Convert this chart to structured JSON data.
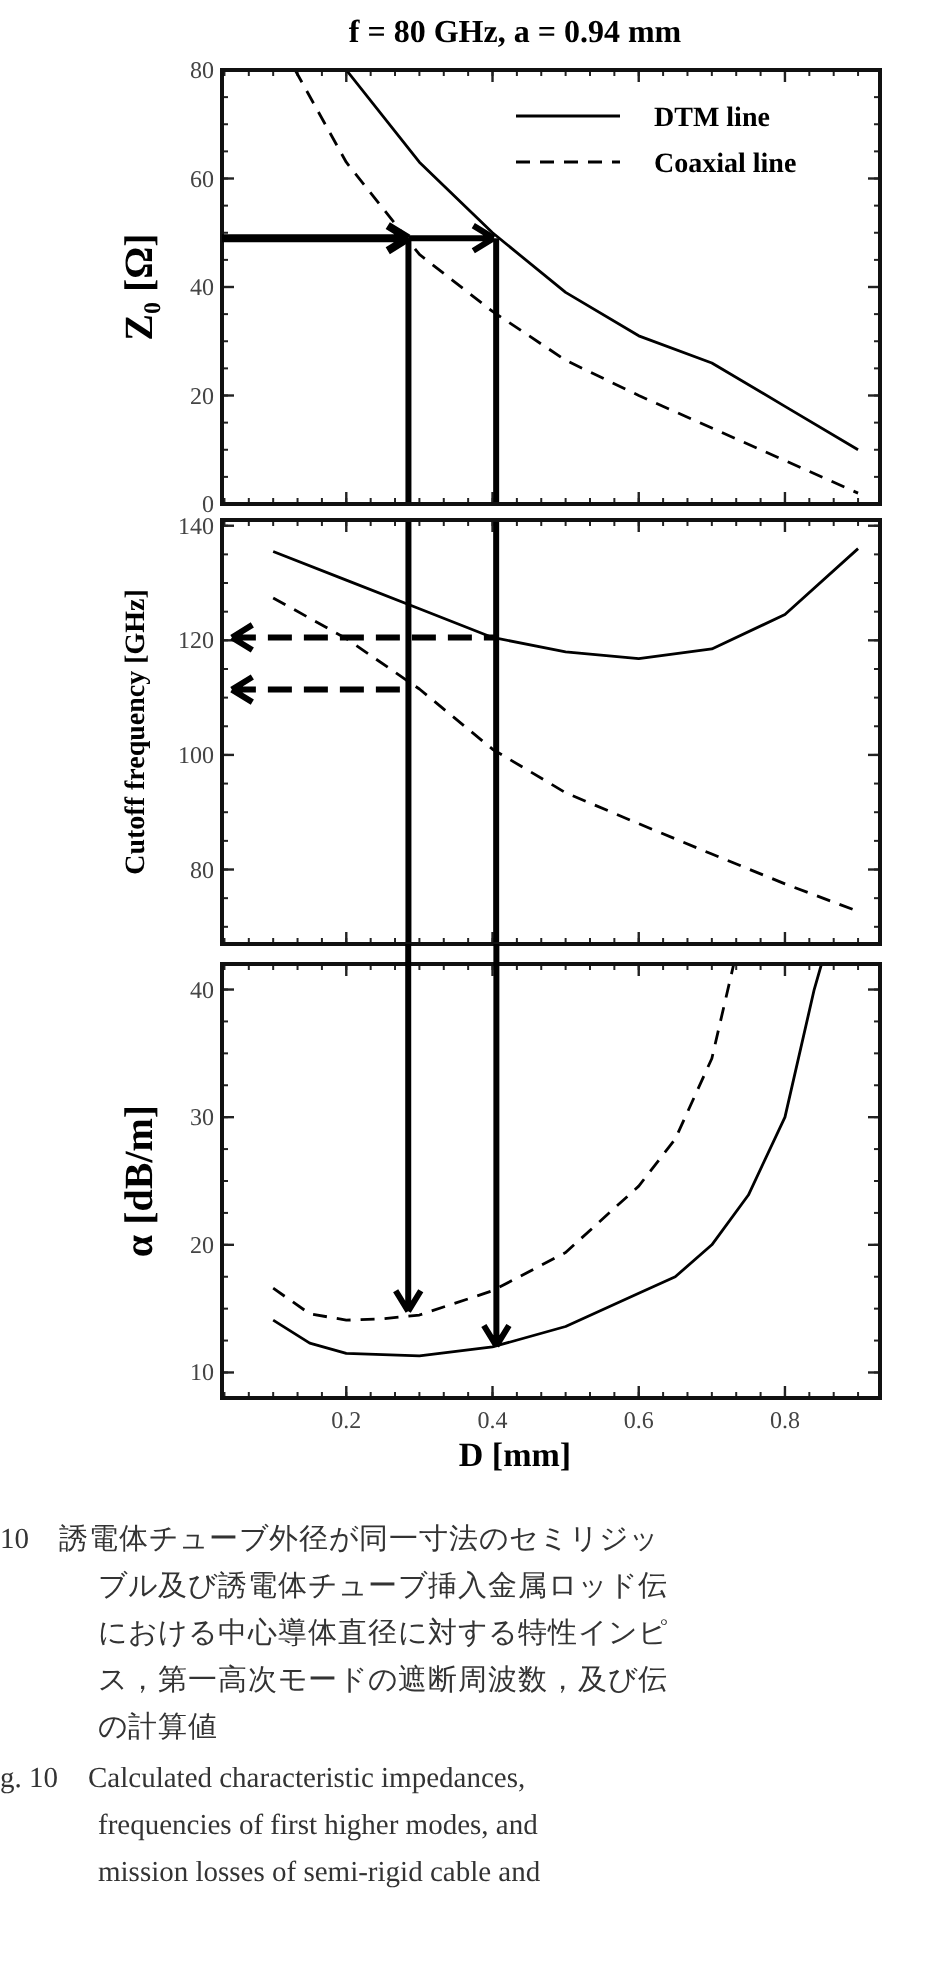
{
  "chart_data": [
    {
      "type": "line",
      "title": "f = 80 GHz,  a = 0.94 mm",
      "ylabel": "Z₀ [Ω]",
      "xlim": [
        0.03,
        0.93
      ],
      "ylim": [
        0,
        80
      ],
      "xticks": [
        0.2,
        0.4,
        0.6,
        0.8
      ],
      "yticks": [
        0,
        20,
        40,
        60,
        80
      ],
      "tick_labels": "y",
      "legend": "top right",
      "series": [
        {
          "name": "DTM line",
          "color": "#000000",
          "line_style": "solid",
          "x": [
            0.2,
            0.3,
            0.4,
            0.5,
            0.6,
            0.7,
            0.8,
            0.9
          ],
          "values": [
            80,
            63,
            50,
            39,
            31,
            26,
            18,
            10
          ]
        },
        {
          "name": "Coaxial line",
          "color": "#000000",
          "line_style": "dashed",
          "x": [
            0.13,
            0.2,
            0.3,
            0.4,
            0.5,
            0.6,
            0.7,
            0.8,
            0.9
          ],
          "values": [
            80,
            63,
            46,
            35.5,
            26.5,
            20,
            14,
            8,
            2
          ]
        },
        {
          "color": "#000000",
          "line_style": "solid",
          "x": [
            0.285,
            0.285
          ],
          "values": [
            49,
            0
          ]
        },
        {
          "color": "#000000",
          "line_style": "solid",
          "x": [
            0.405,
            0.405
          ],
          "values": [
            49,
            0
          ]
        }
      ]
    },
    {
      "type": "line",
      "ylabel": "Cutoff frequency [GHz]",
      "xlim": [
        0.03,
        0.93
      ],
      "ylim": [
        67,
        141
      ],
      "xticks": [
        0.2,
        0.4,
        0.6,
        0.8
      ],
      "yticks": [
        80,
        100,
        120,
        140
      ],
      "tick_labels": "y",
      "ref_lines": [
        {
          "axis": "x",
          "value": 0.285,
          "color": "#000000",
          "line_style": "solid"
        },
        {
          "axis": "x",
          "value": 0.405,
          "color": "#000000",
          "line_style": "solid"
        }
      ],
      "series": [
        {
          "color": "#000000",
          "line_style": "solid",
          "x": [
            0.1,
            0.2,
            0.3,
            0.4,
            0.5,
            0.6,
            0.7,
            0.8,
            0.9
          ],
          "values": [
            135.5,
            130.5,
            125.5,
            120.5,
            118,
            116.8,
            118.5,
            124.5,
            136
          ]
        },
        {
          "color": "#000000",
          "line_style": "dashed",
          "x": [
            0.1,
            0.2,
            0.3,
            0.4,
            0.5,
            0.6,
            0.7,
            0.8,
            0.9
          ],
          "values": [
            127.4,
            120.3,
            111.5,
            101,
            93.4,
            88,
            82.7,
            77.5,
            72.7
          ]
        }
      ]
    },
    {
      "type": "line",
      "xlabel": "D [mm]",
      "ylabel": "α [dB/m]",
      "xlim": [
        0.03,
        0.93
      ],
      "ylim": [
        8,
        42
      ],
      "xticks": [
        0.2,
        0.4,
        0.6,
        0.8
      ],
      "yticks": [
        10,
        20,
        30,
        40
      ],
      "series": [
        {
          "color": "#000000",
          "line_style": "solid",
          "x": [
            0.1,
            0.15,
            0.2,
            0.3,
            0.4,
            0.5,
            0.6,
            0.65,
            0.7,
            0.75,
            0.8,
            0.84,
            0.85
          ],
          "values": [
            14.1,
            12.3,
            11.5,
            11.3,
            12,
            13.6,
            16.2,
            17.5,
            20,
            23.9,
            30,
            40,
            42
          ]
        },
        {
          "color": "#000000",
          "line_style": "dashed",
          "x": [
            0.1,
            0.15,
            0.2,
            0.25,
            0.3,
            0.4,
            0.5,
            0.6,
            0.65,
            0.7,
            0.73
          ],
          "values": [
            16.6,
            14.6,
            14.1,
            14.2,
            14.5,
            16.4,
            19.4,
            24.6,
            28.3,
            34.6,
            42
          ]
        }
      ],
      "annotations": [
        "10　誘電体チューブ外径が同一寸法のセミリジッ",
        "ブル及び誘電体チューブ挿入金属ロッド伝",
        "における中心導体直径に対する特性インピ",
        "ス，第一高次モードの遮断周波数，及び伝",
        "の計算値",
        "g. 10　Calculated characteristic impedances,",
        "frequencies of first higher modes, and",
        "mission losses of semi-rigid cable and"
      ]
    }
  ]
}
